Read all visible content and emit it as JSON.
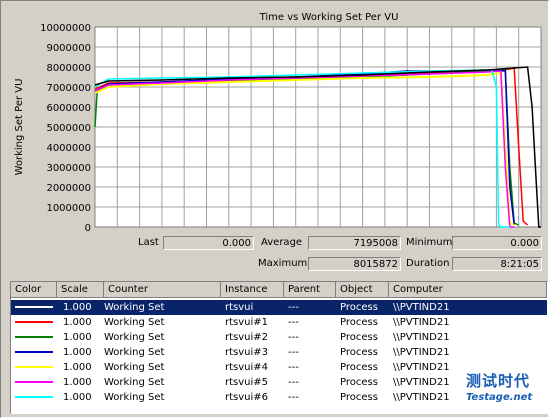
{
  "chart_data": {
    "type": "line",
    "title": "Time vs Working Set Per VU",
    "ylabel": "Working Set Per VU",
    "xlabel": "",
    "ylim": [
      0,
      10000000
    ],
    "y_ticks": [
      "0",
      "1000000",
      "2000000",
      "3000000",
      "4000000",
      "5000000",
      "6000000",
      "7000000",
      "8000000",
      "9000000",
      "10000000"
    ],
    "x_range": [
      0,
      100
    ],
    "grid": true,
    "series": [
      {
        "color": "#000000",
        "values": [
          [
            0,
            7100000
          ],
          [
            3,
            7300000
          ],
          [
            15,
            7350000
          ],
          [
            30,
            7450000
          ],
          [
            45,
            7500000
          ],
          [
            60,
            7600000
          ],
          [
            75,
            7750000
          ],
          [
            88,
            7850000
          ],
          [
            94,
            7950000
          ],
          [
            97,
            8000000
          ],
          [
            98,
            6000000
          ],
          [
            99,
            2000000
          ],
          [
            99.5,
            0
          ],
          [
            100,
            0
          ]
        ]
      },
      {
        "color": "#ff0000",
        "values": [
          [
            0,
            6900000
          ],
          [
            3,
            7200000
          ],
          [
            15,
            7250000
          ],
          [
            30,
            7350000
          ],
          [
            45,
            7450000
          ],
          [
            60,
            7550000
          ],
          [
            75,
            7700000
          ],
          [
            88,
            7800000
          ],
          [
            93,
            7900000
          ],
          [
            94,
            7950000
          ],
          [
            95,
            4000000
          ],
          [
            96,
            300000
          ],
          [
            97,
            100000
          ]
        ]
      },
      {
        "color": "#008000",
        "values": [
          [
            0,
            5000000
          ],
          [
            0.5,
            6800000
          ],
          [
            3,
            7100000
          ],
          [
            15,
            7200000
          ],
          [
            30,
            7300000
          ],
          [
            45,
            7400000
          ],
          [
            60,
            7500000
          ],
          [
            75,
            7650000
          ],
          [
            88,
            7800000
          ],
          [
            92,
            7900000
          ],
          [
            93,
            3000000
          ],
          [
            94,
            200000
          ],
          [
            95,
            100000
          ]
        ]
      },
      {
        "color": "#0000c0",
        "values": [
          [
            0,
            6800000
          ],
          [
            3,
            7150000
          ],
          [
            15,
            7250000
          ],
          [
            30,
            7400000
          ],
          [
            45,
            7500000
          ],
          [
            60,
            7650000
          ],
          [
            70,
            7800000
          ],
          [
            80,
            7800000
          ],
          [
            88,
            7850000
          ],
          [
            92,
            7800000
          ],
          [
            93,
            2000000
          ],
          [
            94,
            100000
          ]
        ]
      },
      {
        "color": "#ffff00",
        "values": [
          [
            0,
            6700000
          ],
          [
            3,
            7000000
          ],
          [
            15,
            7150000
          ],
          [
            30,
            7250000
          ],
          [
            45,
            7350000
          ],
          [
            60,
            7450000
          ],
          [
            75,
            7500000
          ],
          [
            88,
            7600000
          ],
          [
            91,
            7700000
          ],
          [
            92,
            4000000
          ],
          [
            93,
            200000
          ],
          [
            94,
            100000
          ]
        ]
      },
      {
        "color": "#ff00ff",
        "values": [
          [
            0,
            6800000
          ],
          [
            3,
            7100000
          ],
          [
            15,
            7200000
          ],
          [
            30,
            7350000
          ],
          [
            45,
            7450000
          ],
          [
            60,
            7550000
          ],
          [
            75,
            7650000
          ],
          [
            88,
            7750000
          ],
          [
            91,
            7800000
          ],
          [
            92,
            3000000
          ],
          [
            93,
            0
          ],
          [
            94,
            0
          ]
        ]
      },
      {
        "color": "#00ffff",
        "values": [
          [
            0,
            7000000
          ],
          [
            3,
            7400000
          ],
          [
            15,
            7450000
          ],
          [
            30,
            7500000
          ],
          [
            45,
            7600000
          ],
          [
            60,
            7700000
          ],
          [
            75,
            7800000
          ],
          [
            88,
            7850000
          ],
          [
            89,
            7850000
          ],
          [
            90,
            7000000
          ],
          [
            90.5,
            100000
          ],
          [
            91,
            0
          ],
          [
            93,
            0
          ]
        ]
      }
    ]
  },
  "stats": {
    "last_label": "Last",
    "last_value": "0.000",
    "average_label": "Average",
    "average_value": "7195008",
    "minimum_label": "Minimum",
    "minimum_value": "0.000",
    "maximum_label": "Maximum",
    "maximum_value": "8015872",
    "duration_label": "Duration",
    "duration_value": "8:21:05"
  },
  "table": {
    "headers": [
      "Color",
      "Scale",
      "Counter",
      "Instance",
      "Parent",
      "Object",
      "Computer"
    ],
    "rows": [
      {
        "color": "#000000",
        "scale": "1.000",
        "counter": "Working Set",
        "instance": "rtsvui",
        "parent": "---",
        "object": "Process",
        "computer": "\\\\PVTIND21",
        "selected": true
      },
      {
        "color": "#ff0000",
        "scale": "1.000",
        "counter": "Working Set",
        "instance": "rtsvui#1",
        "parent": "---",
        "object": "Process",
        "computer": "\\\\PVTIND21"
      },
      {
        "color": "#008000",
        "scale": "1.000",
        "counter": "Working Set",
        "instance": "rtsvui#2",
        "parent": "---",
        "object": "Process",
        "computer": "\\\\PVTIND21"
      },
      {
        "color": "#0000c0",
        "scale": "1.000",
        "counter": "Working Set",
        "instance": "rtsvui#3",
        "parent": "---",
        "object": "Process",
        "computer": "\\\\PVTIND21"
      },
      {
        "color": "#ffff00",
        "scale": "1.000",
        "counter": "Working Set",
        "instance": "rtsvui#4",
        "parent": "---",
        "object": "Process",
        "computer": "\\\\PVTIND21"
      },
      {
        "color": "#ff00ff",
        "scale": "1.000",
        "counter": "Working Set",
        "instance": "rtsvui#5",
        "parent": "---",
        "object": "Process",
        "computer": "\\\\PVTIND21"
      },
      {
        "color": "#00ffff",
        "scale": "1.000",
        "counter": "Working Set",
        "instance": "rtsvui#6",
        "parent": "---",
        "object": "Process",
        "computer": "\\\\PVTIND21"
      }
    ]
  },
  "watermark": {
    "logo": "测试时代",
    "site": "Testage.net"
  }
}
